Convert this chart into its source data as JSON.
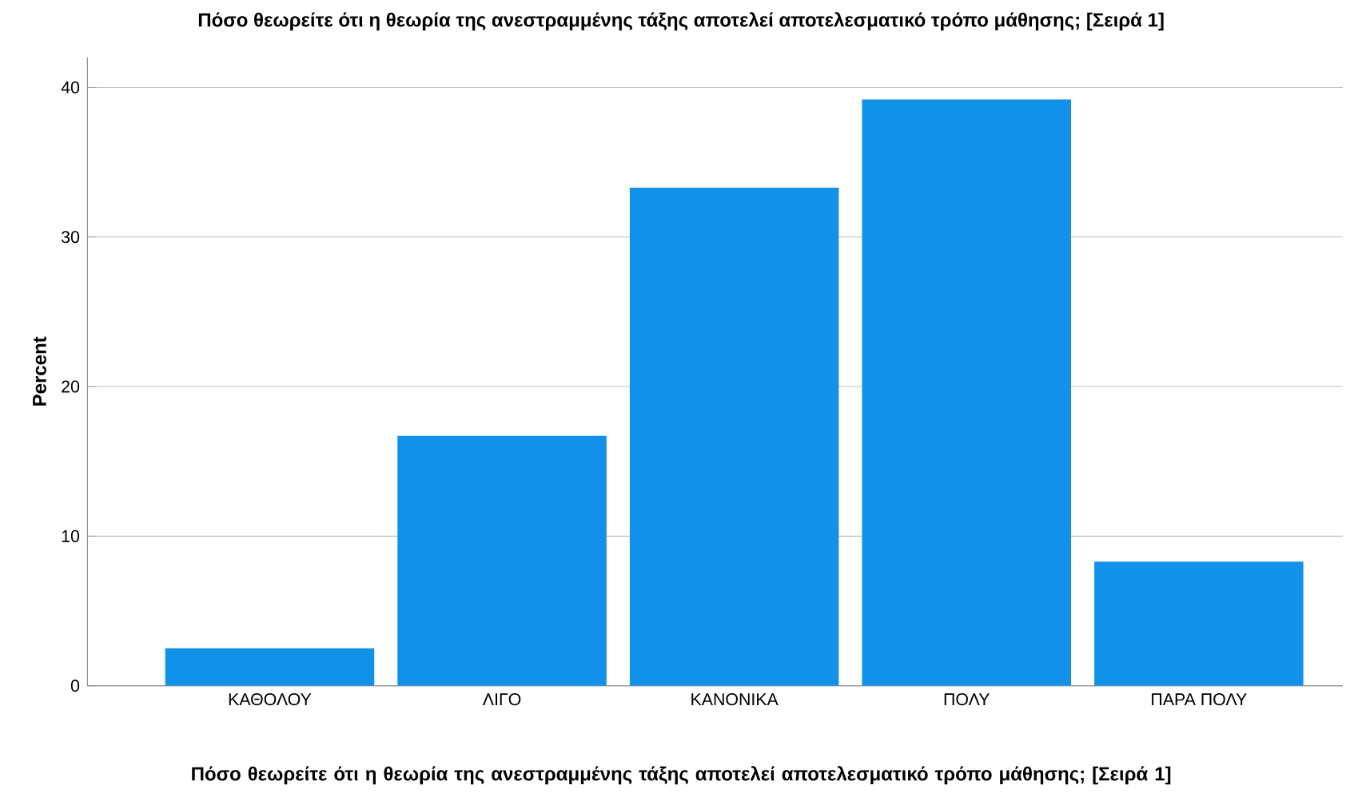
{
  "chart_data": {
    "type": "bar",
    "title": "Πόσο θεωρείτε ότι η θεωρία της ανεστραμμένης τάξης αποτελεί αποτελεσματικό τρόπο μάθησης; [Σειρά 1]",
    "xlabel": "Πόσο θεωρείτε ότι η θεωρία της ανεστραμμένης τάξης αποτελεί αποτελεσματικό τρόπο μάθησης; [Σειρά 1]",
    "ylabel": "Percent",
    "categories": [
      "ΚΑΘΟΛΟΥ",
      "ΛΙΓΟ",
      "ΚΑΝΟΝΙΚΑ",
      "ΠΟΛΥ",
      "ΠΑΡΑ ΠΟΛΥ"
    ],
    "values": [
      2.5,
      16.7,
      33.3,
      39.2,
      8.3
    ],
    "color": "#1192e8",
    "ylim": [
      0,
      42
    ],
    "yticks": [
      0,
      10,
      20,
      30,
      40
    ],
    "grid": "y"
  }
}
